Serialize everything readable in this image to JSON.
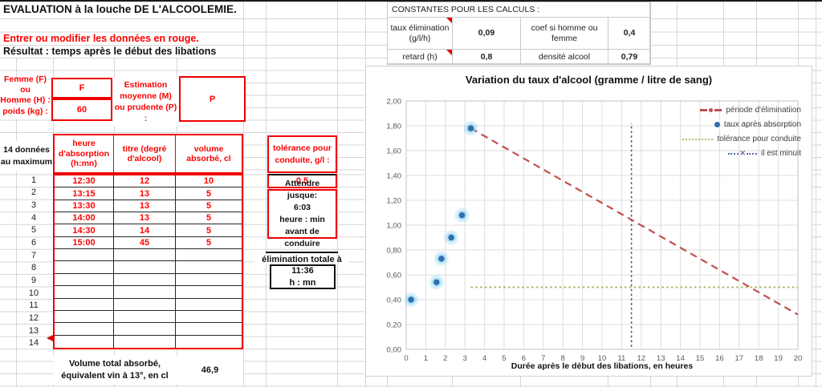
{
  "sheet": {
    "title": "EVALUATION à la louche DE L'ALCOOLEMIE.",
    "note_red": "Entrer ou modifier les données en rouge.",
    "note_result": "Résultat : temps après le début des libations"
  },
  "constants": {
    "header": "CONSTANTES POUR LES CALCULS :",
    "row1": {
      "label": "taux élimination (g/l/h)",
      "value": "0,09",
      "label2": "coef si homme ou femme",
      "value2": "0,4"
    },
    "row2": {
      "label": "retard (h)",
      "value": "0,8",
      "label2": "densité alcool",
      "value2": "0,79"
    }
  },
  "form": {
    "sex_label_l1": "Femme (F) ou",
    "sex_label_l2": "Homme (H) :",
    "sex_value": "F",
    "weight_label": "poids (kg) :",
    "weight_value": "60",
    "estimation_l1": "Estimation",
    "estimation_l2": "moyenne (M)",
    "estimation_l3": "ou prudente (P)",
    "estimation_l4": ":",
    "estimation_value": "P"
  },
  "table": {
    "note": "14 données au maximum",
    "headers": [
      "heure d'absorption (h:mn)",
      "titre (degré d'alcool)",
      "volume absorbé, cl"
    ],
    "rows": [
      {
        "n": "1",
        "time": "12:30",
        "deg": "12",
        "vol": "10"
      },
      {
        "n": "2",
        "time": "13:15",
        "deg": "13",
        "vol": "5"
      },
      {
        "n": "3",
        "time": "13:30",
        "deg": "13",
        "vol": "5"
      },
      {
        "n": "4",
        "time": "14:00",
        "deg": "13",
        "vol": "5"
      },
      {
        "n": "5",
        "time": "14:30",
        "deg": "14",
        "vol": "5"
      },
      {
        "n": "6",
        "time": "15:00",
        "deg": "45",
        "vol": "5"
      },
      {
        "n": "7",
        "time": "",
        "deg": "",
        "vol": ""
      },
      {
        "n": "8",
        "time": "",
        "deg": "",
        "vol": ""
      },
      {
        "n": "9",
        "time": "",
        "deg": "",
        "vol": ""
      },
      {
        "n": "10",
        "time": "",
        "deg": "",
        "vol": ""
      },
      {
        "n": "11",
        "time": "",
        "deg": "",
        "vol": ""
      },
      {
        "n": "12",
        "time": "",
        "deg": "",
        "vol": ""
      },
      {
        "n": "13",
        "time": "",
        "deg": "",
        "vol": ""
      },
      {
        "n": "14",
        "time": "",
        "deg": "",
        "vol": ""
      }
    ],
    "total_label": "Volume total absorbé, équivalent vin à 13°, en cl",
    "total_value": "46,9"
  },
  "tolerance": {
    "label": "tolérance pour conduite, g/l :",
    "value": "0,5",
    "wait_lines": [
      "Attendre jusque:",
      "6:03",
      "heure : min",
      "avant de conduire"
    ]
  },
  "elimination": {
    "label": "élimination totale à",
    "time": "11:36",
    "unit": "h : mn"
  },
  "chart_data": {
    "type": "scatter",
    "title": "Variation du taux d'alcool (gramme / litre de sang)",
    "xlabel": "Durée après le début des libations, en heures",
    "ylabel": "",
    "xlim": [
      0,
      20
    ],
    "ylim": [
      0,
      2
    ],
    "x_step": 1,
    "y_step": 0.2,
    "grid": true,
    "legend_position": "top-right",
    "series": [
      {
        "name": "période d'éliminatiion",
        "type": "line",
        "style": "dashed",
        "width": 2.2,
        "color": "#c0504d",
        "legend_marker": "dash-dot-dash",
        "points": [
          [
            3.3,
            1.78
          ],
          [
            20,
            0.28
          ]
        ]
      },
      {
        "name": "taux après absorption",
        "type": "scatter",
        "color": "#2f6fab",
        "glow_color": "#7fd0f0",
        "legend_marker": "dot",
        "points": [
          [
            0.25,
            0.4
          ],
          [
            1.55,
            0.54
          ],
          [
            1.8,
            0.73
          ],
          [
            2.3,
            0.9
          ],
          [
            2.85,
            1.08
          ],
          [
            3.3,
            1.78
          ]
        ]
      },
      {
        "name": "tolérance pour conduite",
        "type": "line",
        "style": "dotted",
        "width": 2,
        "color": "#b2b66a",
        "legend_marker": "dots",
        "points": [
          [
            3.3,
            0.5
          ],
          [
            20,
            0.5
          ]
        ]
      },
      {
        "name": "il est minuit",
        "type": "line",
        "style": "dotted",
        "width": 1.6,
        "color": "#595959",
        "legend_marker": "dots-x",
        "legend_dot_color": "#4f6db8",
        "legend_x_color": "#7e62a8",
        "points": [
          [
            11.5,
            0.02
          ],
          [
            11.5,
            1.82
          ]
        ]
      }
    ]
  }
}
